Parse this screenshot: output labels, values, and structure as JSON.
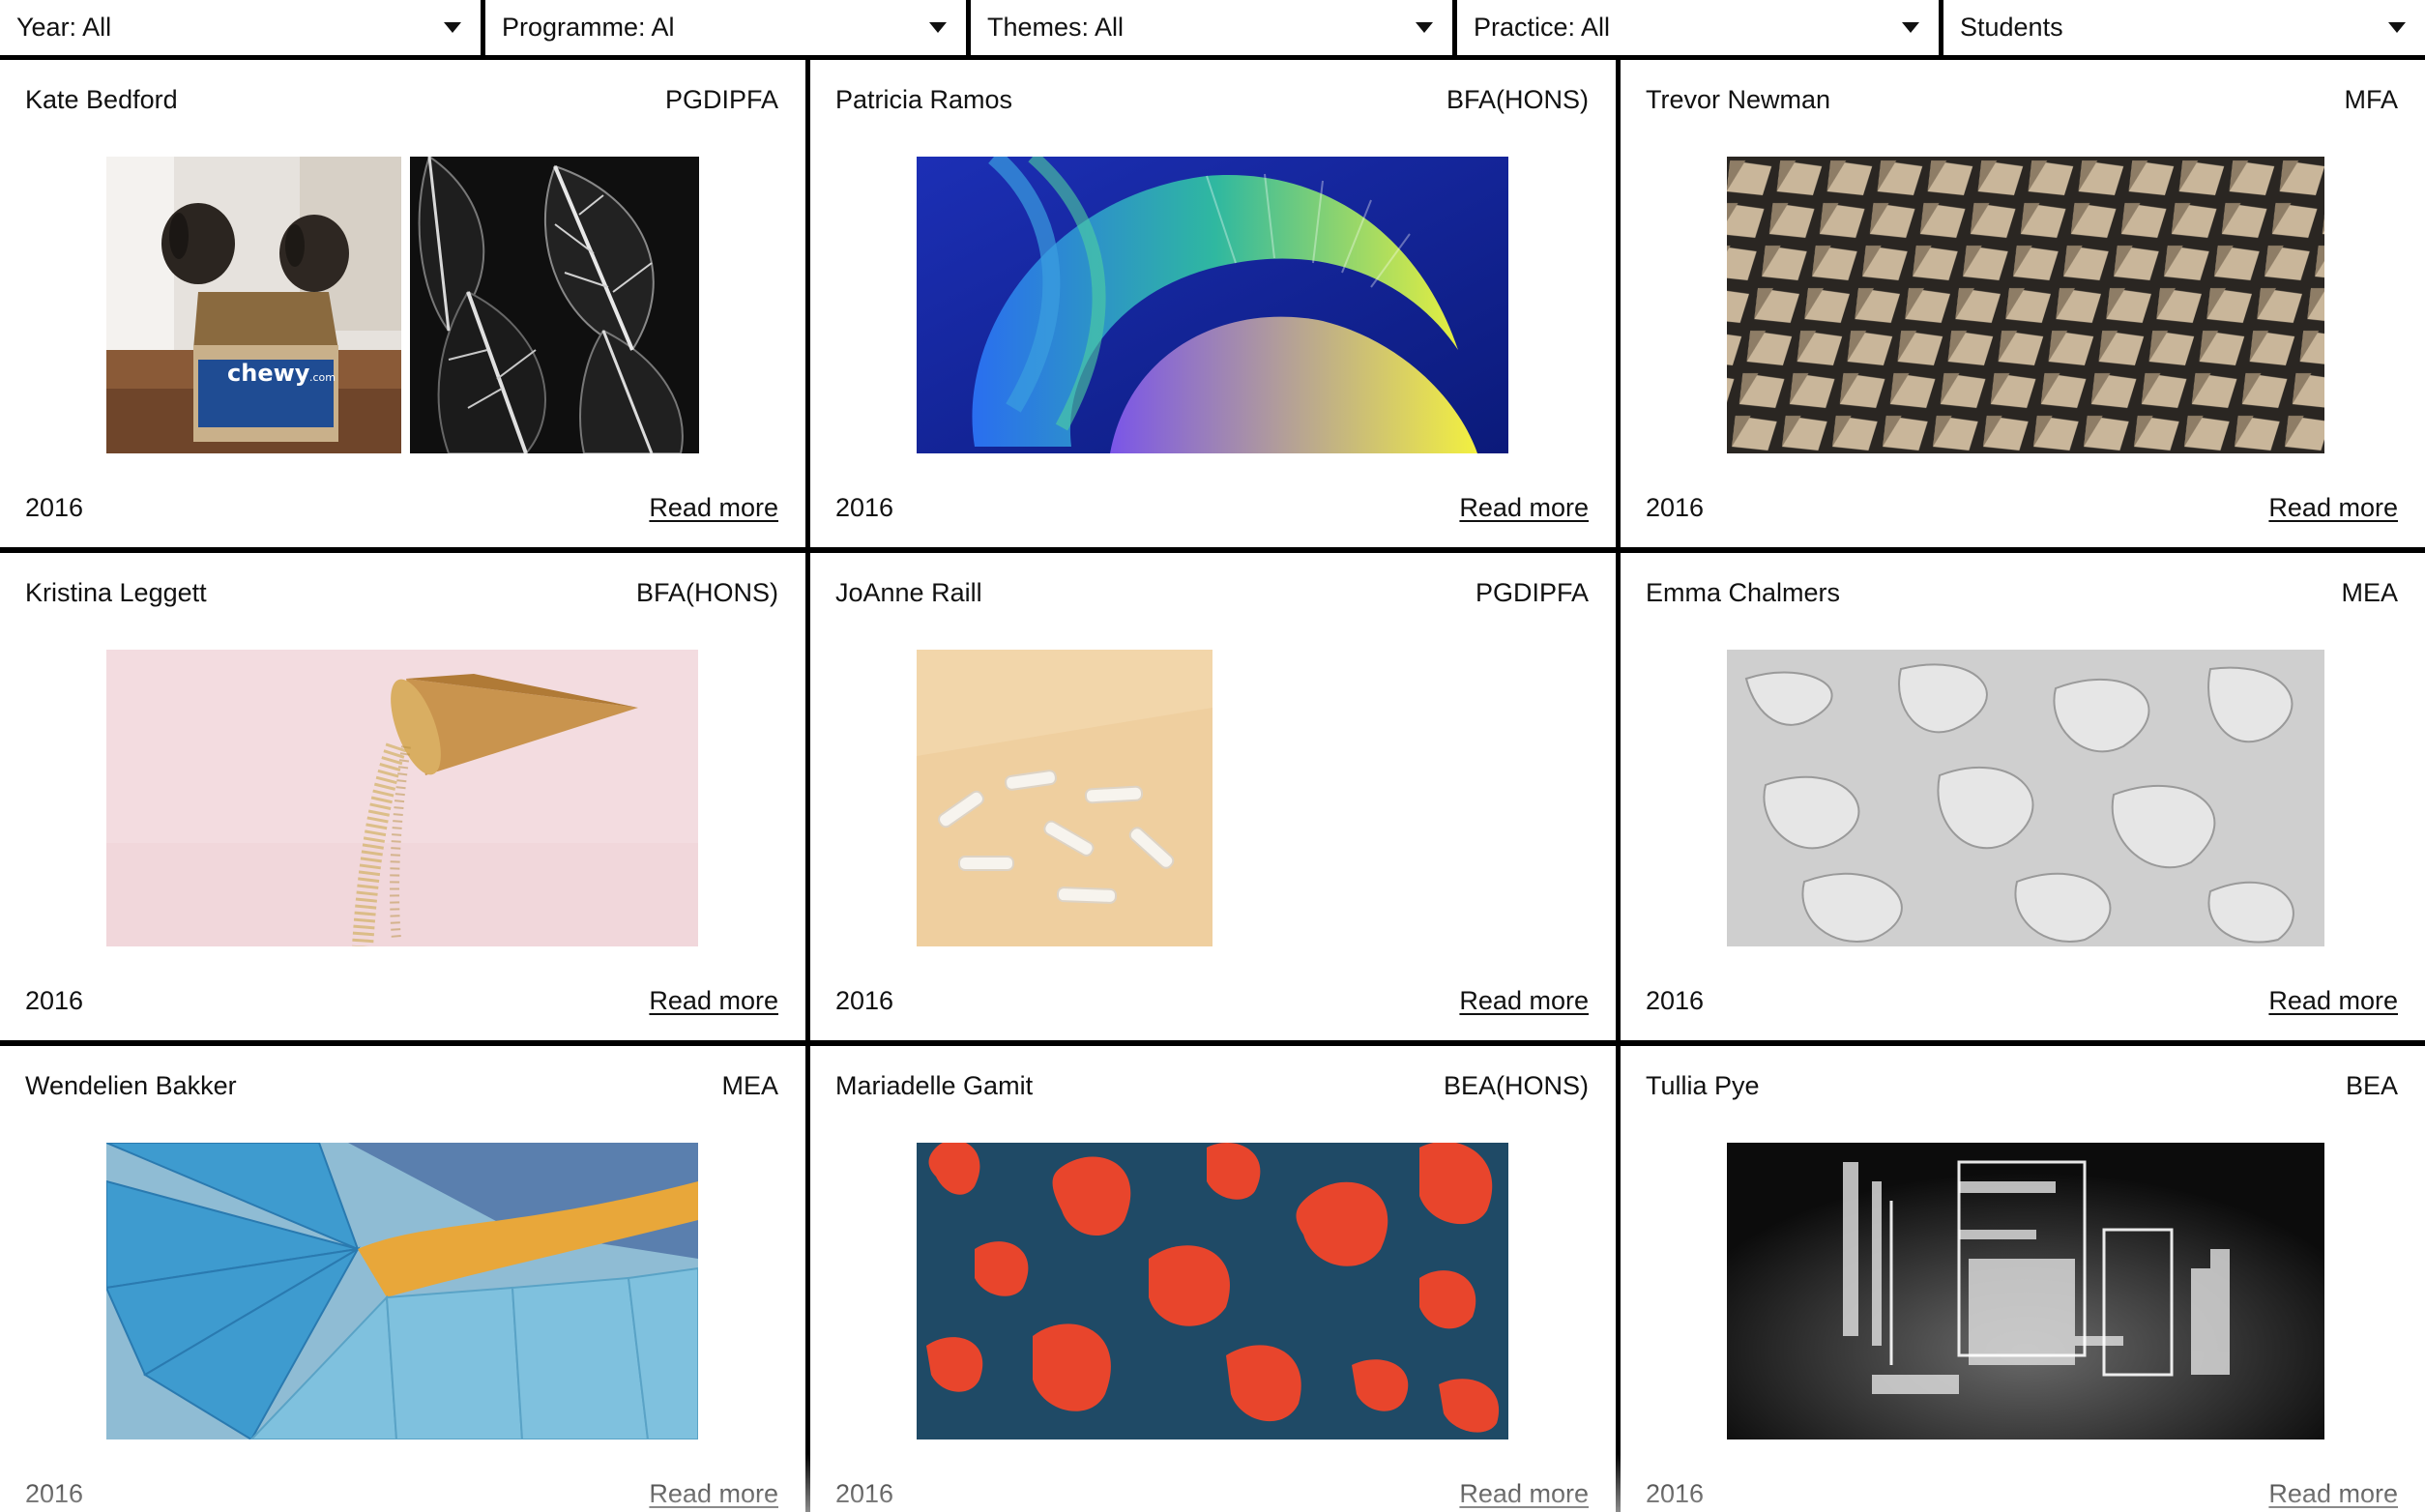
{
  "filters": [
    {
      "label": "Year: All"
    },
    {
      "label": "Programme: Al"
    },
    {
      "label": "Themes: All"
    },
    {
      "label": "Practice: All"
    },
    {
      "label": "Students"
    }
  ],
  "cards": [
    {
      "name": "Kate Bedford",
      "programme": "PGDIPFA",
      "year": "2016",
      "link": "Read more",
      "images": [
        "dogs in cardboard box",
        "black and white leaves"
      ]
    },
    {
      "name": "Patricia Ramos",
      "programme": "BFA(HONS)",
      "year": "2016",
      "link": "Read more",
      "images": [
        "colorful 3D spiral"
      ]
    },
    {
      "name": "Trevor Newman",
      "programme": "MFA",
      "year": "2016",
      "link": "Read more",
      "images": [
        "geometric facade"
      ]
    },
    {
      "name": "Kristina Leggett",
      "programme": "BFA(HONS)",
      "year": "2016",
      "link": "Read more",
      "images": [
        "waffle cone pouring glitter"
      ]
    },
    {
      "name": "JoAnne Raill",
      "programme": "PGDIPFA",
      "year": "2016",
      "link": "Read more",
      "images": [
        "white tubes on beige"
      ]
    },
    {
      "name": "Emma Chalmers",
      "programme": "MEA",
      "year": "2016",
      "link": "Read more",
      "images": [
        "white plaster texture"
      ]
    },
    {
      "name": "Wendelien Bakker",
      "programme": "MEA",
      "year": "2016",
      "link": "Read more",
      "images": [
        "blue spiral staircase"
      ]
    },
    {
      "name": "Mariadelle Gamit",
      "programme": "BEA(HONS)",
      "year": "2016",
      "link": "Read more",
      "images": [
        "red 3D hearts"
      ]
    },
    {
      "name": "Tullia Pye",
      "programme": "BEA",
      "year": "2016",
      "link": "Read more",
      "images": [
        "glass chair sculpture"
      ]
    }
  ]
}
